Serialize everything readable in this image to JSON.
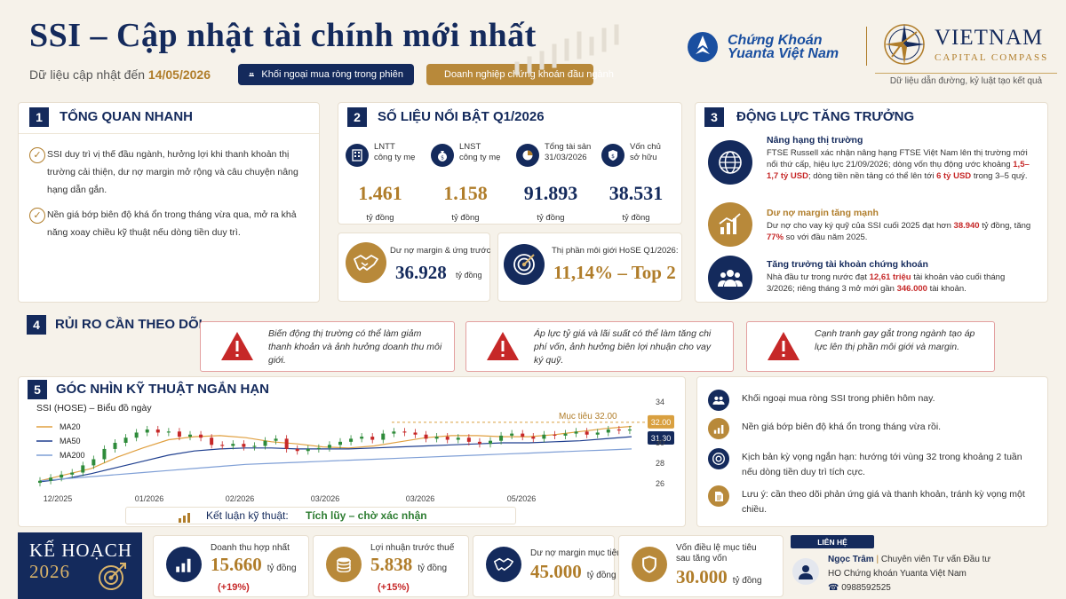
{
  "header": {
    "title": "SSI – Cập nhật tài chính mới nhất",
    "updated_label": "Dữ liệu cập nhật đến",
    "updated_date": "14/05/2026",
    "pill_foreign": "Khối ngoại mua ròng trong phiên",
    "pill_leader": "Doanh nghiệp chứng khoán đầu ngành"
  },
  "logos": {
    "yuanta_line1": "Chứng Khoán",
    "yuanta_line2": "Yuanta Việt Nam",
    "vcc_line1": "VIETNAM",
    "vcc_line2": "CAPITAL COMPASS",
    "tagline": "Dữ liệu dẫn đường, kỷ luật tạo kết quả"
  },
  "section1": {
    "num": "1",
    "title": "TỔNG QUAN NHANH",
    "bullets": [
      "SSI duy trì vị thế đầu ngành, hưởng lợi khi thanh khoản thị trường cải thiện, dư nợ margin mở rộng và câu chuyện nâng hạng dẫn gắn.",
      "Nền giá bớp biên độ khá ổn trong tháng vừa qua, mở ra khả năng xoay chiều kỹ thuật nếu dòng tiền duy trì."
    ]
  },
  "section2": {
    "num": "2",
    "title": "SỐ LIỆU NỔI BẬT Q1/2026",
    "metrics": [
      {
        "label1": "LNTT",
        "label2": "công ty mẹ",
        "value": "1.461",
        "unit": "tỷ đồng",
        "color": "#b07d2a"
      },
      {
        "label1": "LNST",
        "label2": "công ty mẹ",
        "value": "1.158",
        "unit": "tỷ đồng",
        "color": "#b07d2a"
      },
      {
        "label1": "Tổng tài sản",
        "label2": "31/03/2026",
        "value": "91.893",
        "unit": "tỷ đồng",
        "color": "#142a5c"
      },
      {
        "label1": "Vốn chủ",
        "label2": "sở hữu",
        "value": "38.531",
        "unit": "tỷ đồng",
        "color": "#142a5c"
      }
    ],
    "margin_label": "Dư nợ margin & ứng trước",
    "margin_value": "36.928",
    "margin_unit": "tỷ đồng",
    "share_label": "Thị phần môi giới HoSE Q1/2026:",
    "share_value": "11,14% – Top 2"
  },
  "section3": {
    "num": "3",
    "title": "ĐỘNG LỰC TĂNG TRƯỞNG",
    "d1_title": "Nâng hạng thị trường",
    "d1_text_a": "FTSE Russell xác nhận nâng hạng FTSE Việt Nam lên thị trường mới nổi thứ cấp, hiệu lực 21/09/2026; dòng vốn thụ động ước khoảng",
    "d1_hl1": "1,5–1,7 tỷ USD",
    "d1_text_b": "; dòng tiền nền tảng có thể lên tới",
    "d1_hl2": "6 tỷ USD",
    "d1_text_c": "trong 3–5 quý.",
    "d2_title": "Dư nợ margin tăng mạnh",
    "d2_text_a": "Dư nợ cho vay ký quỹ của SSI cuối 2025 đạt hơn",
    "d2_hl1": "38.940",
    "d2_text_b": "tỷ đồng, tăng",
    "d2_hl2": "77%",
    "d2_text_c": "so với đầu năm 2025.",
    "d3_title": "Tăng trưởng tài khoản chứng khoán",
    "d3_text_a": "Nhà đầu tư trong nước đạt",
    "d3_hl1": "12,61 triệu",
    "d3_text_b": "tài khoản vào cuối tháng 3/2026; riêng tháng 3 mở mới gần",
    "d3_hl2": "346.000",
    "d3_text_c": "tài khoản."
  },
  "section4": {
    "num": "4",
    "title": "RỦI RO CẦN THEO DÕI",
    "risks": [
      "Biến động thị trường có thể làm giảm thanh khoản và ảnh hưởng doanh thu môi giới.",
      "Áp lực tỷ giá và lãi suất có thể làm tăng chi phí vốn, ảnh hưởng biên lợi nhuận cho vay ký quỹ.",
      "Cạnh tranh gay gắt trong ngành tạo áp lực lên thị phần môi giới và margin."
    ]
  },
  "section5": {
    "num": "5",
    "title": "GÓC NHÌN KỸ THUẬT NGẮN HẠN",
    "chart_title": "SSI (HOSE) – Biểu đồ ngày",
    "target_label": "Mục tiêu 32.00",
    "price_tag": "32.00",
    "current_tag": "31.30",
    "conclusion_label": "Kết luận kỹ thuật:",
    "conclusion_value": "Tích lũy – chờ xác nhận",
    "notes": [
      "Khối ngoại mua ròng SSI trong phiên hôm nay.",
      "Nền giá bớp biên độ khá ổn trong tháng vừa rồi.",
      "Kịch bản kỳ vọng ngắn hạn: hướng tới vùng 32 trong khoảng 2 tuần nếu dòng tiền duy trì tích cực.",
      "Lưu ý: cần theo dõi phản ứng giá và thanh khoản, tránh kỳ vọng một chiều."
    ]
  },
  "chart_data": {
    "type": "line",
    "title": "SSI (HOSE) – Biểu đồ ngày",
    "xlabel": "",
    "ylabel": "",
    "x_ticks": [
      "12/2025",
      "01/2026",
      "02/2026",
      "03/2026",
      "03/2026",
      "05/2026"
    ],
    "y_ticks": [
      26,
      28,
      30,
      32,
      34
    ],
    "ylim": [
      25.5,
      34.5
    ],
    "legend": [
      "MA20",
      "MA50",
      "MA200"
    ],
    "legend_position": "top-left",
    "colors": {
      "MA20": "#e0a040",
      "MA50": "#1f3f8f",
      "MA200": "#7f9fd6",
      "up": "#2e8b3a",
      "down": "#c62828"
    },
    "target": 32.0,
    "current": 31.3,
    "series": [
      {
        "name": "MA20",
        "values": [
          26.3,
          26.9,
          27.5,
          28.6,
          29.5,
          30.3,
          30.6,
          30.7,
          30.5,
          30.1,
          29.9,
          29.6,
          29.5,
          29.7,
          30.1,
          30.5,
          30.7,
          30.7,
          30.6,
          30.6,
          30.8,
          31.1,
          31.4,
          31.6
        ]
      },
      {
        "name": "MA50",
        "values": [
          26.2,
          26.5,
          27.0,
          27.6,
          28.2,
          28.8,
          29.2,
          29.4,
          29.5,
          29.5,
          29.4,
          29.4,
          29.4,
          29.5,
          29.6,
          29.7,
          29.8,
          29.9,
          30.0,
          30.0,
          30.1,
          30.2,
          30.4,
          30.6
        ]
      },
      {
        "name": "MA200",
        "values": [
          26.3,
          26.5,
          26.7,
          26.9,
          27.1,
          27.3,
          27.5,
          27.7,
          27.9,
          28.0,
          28.1,
          28.2,
          28.3,
          28.4,
          28.5,
          28.6,
          28.7,
          28.8,
          28.9,
          29.0,
          29.1,
          29.2,
          29.3,
          29.4
        ]
      }
    ],
    "close": [
      26.3,
      26.6,
      26.9,
      27.1,
      27.8,
      28.4,
      29.4,
      30.0,
      30.5,
      31.0,
      31.3,
      31.0,
      31.1,
      30.6,
      30.8,
      30.5,
      29.8,
      29.7,
      29.9,
      29.6,
      29.7,
      30.2,
      30.4,
      29.4,
      29.2,
      29.4,
      29.5,
      29.8,
      30.1,
      30.4,
      30.6,
      30.3,
      30.9,
      31.1,
      31.0,
      30.8,
      30.4,
      30.6,
      30.3,
      30.5,
      30.1,
      29.9,
      30.2,
      30.7,
      30.9,
      30.6,
      30.4,
      30.8,
      30.7,
      30.9,
      31.1,
      30.8,
      31.0,
      31.3,
      31.2,
      31.3
    ]
  },
  "plan": {
    "title1": "KẾ HOẠCH",
    "title2": "2026",
    "items": [
      {
        "label": "Doanh thu hợp nhất",
        "value": "15.660",
        "unit": "tỷ đồng",
        "change": "(+19%)"
      },
      {
        "label": "Lợi nhuận trước thuế",
        "value": "5.838",
        "unit": "tỷ đồng",
        "change": "(+15%)"
      },
      {
        "label": "Dư nợ margin mục tiêu",
        "value": "45.000",
        "unit": "tỷ đồng",
        "change": ""
      },
      {
        "label": "Vốn điều lệ mục tiêu sau tăng vốn",
        "value": "30.000",
        "unit": "tỷ đồng",
        "change": ""
      }
    ]
  },
  "contact": {
    "header": "LIÊN HỆ",
    "name": "Ngọc Trâm",
    "role": "Chuyên viên Tư vấn Đầu tư",
    "company": "HO Chứng khoán Yuanta Việt Nam",
    "phone": "0988592525"
  }
}
